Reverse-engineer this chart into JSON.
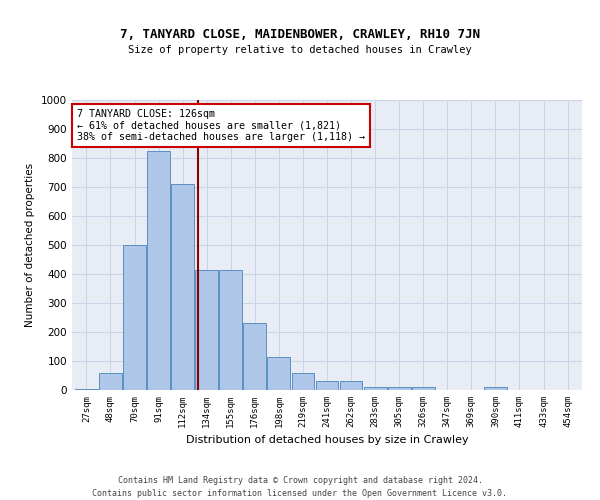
{
  "title": "7, TANYARD CLOSE, MAIDENBOWER, CRAWLEY, RH10 7JN",
  "subtitle": "Size of property relative to detached houses in Crawley",
  "xlabel": "Distribution of detached houses by size in Crawley",
  "ylabel": "Number of detached properties",
  "footer_line1": "Contains HM Land Registry data © Crown copyright and database right 2024.",
  "footer_line2": "Contains public sector information licensed under the Open Government Licence v3.0.",
  "categories": [
    "27sqm",
    "48sqm",
    "70sqm",
    "91sqm",
    "112sqm",
    "134sqm",
    "155sqm",
    "176sqm",
    "198sqm",
    "219sqm",
    "241sqm",
    "262sqm",
    "283sqm",
    "305sqm",
    "326sqm",
    "347sqm",
    "369sqm",
    "390sqm",
    "411sqm",
    "433sqm",
    "454sqm"
  ],
  "values": [
    5,
    60,
    500,
    825,
    710,
    415,
    415,
    230,
    115,
    60,
    30,
    30,
    10,
    10,
    10,
    0,
    0,
    10,
    0,
    0,
    0
  ],
  "bar_color": "#aec6e8",
  "bar_edge_color": "#5a8fc2",
  "grid_color": "#c8d4e8",
  "background_color": "#e8edf5",
  "annotation_text": "7 TANYARD CLOSE: 126sqm\n← 61% of detached houses are smaller (1,821)\n38% of semi-detached houses are larger (1,118) →",
  "annotation_box_color": "#cc0000",
  "vline_color": "#8b0000",
  "ylim": [
    0,
    1000
  ],
  "yticks": [
    0,
    100,
    200,
    300,
    400,
    500,
    600,
    700,
    800,
    900,
    1000
  ]
}
